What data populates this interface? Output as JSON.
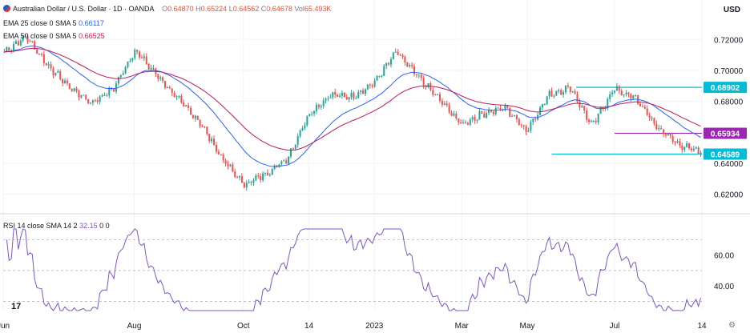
{
  "header": {
    "title": "Australian Dollar / U.S. Dollar · 1D · OANDA",
    "ohlc": {
      "o_label": "O",
      "o": "0.64870",
      "h_label": "H",
      "h": "0.65224",
      "l_label": "L",
      "l": "0.64562",
      "c_label": "C",
      "c": "0.64678",
      "vol_label": "Vol",
      "vol": "65.493K"
    },
    "ema25": "EMA 25 close 0 SMA 5",
    "ema25_value": "0.66117",
    "ema50": "EMA 50 close 0 SMA 5",
    "ema50_value": "0.66525",
    "currency": "USD"
  },
  "rsi_legend": {
    "label": "RSI 14 close SMA 14 2",
    "value": "32.15",
    "extra": "0  0"
  },
  "logo": "17",
  "colors": {
    "up": "#26a69a",
    "down": "#ef5350",
    "ema25": "#2962ff",
    "ema50": "#c2185b",
    "rsi": "#7e57c2",
    "level": "#00bcd4",
    "purple": "#9c27b0",
    "grid": "#f0f3fa"
  },
  "chart_data": [
    {
      "type": "candlestick",
      "title": "Australian Dollar / U.S. Dollar · 1D · OANDA",
      "x_tick_labels": [
        "Jun",
        "Aug",
        "Oct",
        "14",
        "2023",
        "Mar",
        "May",
        "Jul",
        "14"
      ],
      "y_ticks": [
        "0.72000",
        "0.70000",
        "0.68000",
        "0.64000",
        "0.62000"
      ],
      "ylim": [
        0.613,
        0.731
      ],
      "anchors": [
        [
          "Jun",
          0.712
        ],
        [
          "",
          0.722
        ],
        [
          "",
          0.703
        ],
        [
          "",
          0.689
        ],
        [
          "",
          0.679
        ],
        [
          "",
          0.688
        ],
        [
          "Aug",
          0.713
        ],
        [
          "",
          0.697
        ],
        [
          "",
          0.681
        ],
        [
          "",
          0.666
        ],
        [
          "",
          0.643
        ],
        [
          "Oct",
          0.626
        ],
        [
          "",
          0.633
        ],
        [
          "",
          0.643
        ],
        [
          "14",
          0.672
        ],
        [
          "",
          0.684
        ],
        [
          "",
          0.683
        ],
        [
          "2023",
          0.692
        ],
        [
          "",
          0.712
        ],
        [
          "",
          0.696
        ],
        [
          "",
          0.681
        ],
        [
          "Mar",
          0.665
        ],
        [
          "",
          0.672
        ],
        [
          "",
          0.676
        ],
        [
          "May",
          0.661
        ],
        [
          "",
          0.684
        ],
        [
          "",
          0.689
        ],
        [
          "",
          0.664
        ],
        [
          "Jul",
          0.688
        ],
        [
          "",
          0.682
        ],
        [
          "",
          0.663
        ],
        [
          "",
          0.652
        ],
        [
          "14",
          0.6468
        ]
      ],
      "ema25_last": 0.66117,
      "ema50_last": 0.66525,
      "price_labels": [
        {
          "value": 0.68902,
          "text": "0.68902",
          "color": "#00bcd4",
          "line_from": "Jun-3rd-week"
        },
        {
          "value": 0.65934,
          "text": "0.65934",
          "color": "#9c27b0",
          "line_from": "Jul-1st-week"
        },
        {
          "value": 0.64589,
          "text": "0.64589",
          "color": "#00bcd4",
          "line_from": "May-2nd-week"
        }
      ]
    },
    {
      "type": "line",
      "title": "RSI 14 close SMA 14 2",
      "series": [
        {
          "name": "",
          "color": "#7e57c2"
        }
      ],
      "y_ticks": [
        "60.00",
        "40.00"
      ],
      "ylim": [
        24,
        77
      ],
      "levels": [
        70,
        50,
        30
      ],
      "last_value": 32.15
    }
  ]
}
